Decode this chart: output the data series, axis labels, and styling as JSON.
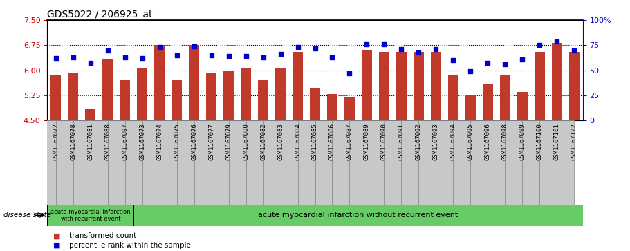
{
  "title": "GDS5022 / 206925_at",
  "samples": [
    "GSM1167072",
    "GSM1167078",
    "GSM1167081",
    "GSM1167088",
    "GSM1167097",
    "GSM1167073",
    "GSM1167074",
    "GSM1167075",
    "GSM1167076",
    "GSM1167077",
    "GSM1167079",
    "GSM1167080",
    "GSM1167082",
    "GSM1167083",
    "GSM1167084",
    "GSM1167085",
    "GSM1167086",
    "GSM1167087",
    "GSM1167089",
    "GSM1167090",
    "GSM1167091",
    "GSM1167092",
    "GSM1167093",
    "GSM1167094",
    "GSM1167095",
    "GSM1167096",
    "GSM1167098",
    "GSM1167099",
    "GSM1167100",
    "GSM1167101",
    "GSM1167122"
  ],
  "bar_values": [
    5.85,
    5.9,
    4.85,
    6.35,
    5.72,
    6.05,
    6.75,
    5.72,
    6.75,
    5.9,
    5.97,
    6.05,
    5.72,
    6.05,
    6.55,
    5.48,
    5.3,
    5.2,
    6.6,
    6.55,
    6.55,
    6.55,
    6.55,
    5.85,
    5.25,
    5.6,
    5.85,
    5.35,
    6.55,
    6.82,
    6.55
  ],
  "dot_values": [
    62,
    63,
    57,
    70,
    63,
    62,
    73,
    65,
    74,
    65,
    64,
    64,
    63,
    66,
    73,
    72,
    63,
    47,
    76,
    76,
    71,
    68,
    71,
    60,
    49,
    57,
    56,
    61,
    75,
    79,
    70
  ],
  "ylim_left": [
    4.5,
    7.5
  ],
  "ylim_right": [
    0,
    100
  ],
  "yticks_left": [
    4.5,
    5.25,
    6.0,
    6.75,
    7.5
  ],
  "yticks_right": [
    0,
    25,
    50,
    75,
    100
  ],
  "hlines": [
    5.25,
    6.0,
    6.75
  ],
  "bar_color": "#C0392B",
  "dot_color": "#0000CC",
  "bar_bottom": 4.5,
  "group1_count": 5,
  "group1_label": "acute myocardial infarction\nwith recurrent event",
  "group2_label": "acute myocardial infarction without recurrent event",
  "group_color": "#66CC66",
  "disease_state_label": "disease state",
  "legend_bar_label": "transformed count",
  "legend_dot_label": "percentile rank within the sample",
  "title_fontsize": 10,
  "tick_fontsize": 6.5,
  "label_fontsize": 8,
  "axis_color_left": "#CC0000",
  "axis_color_right": "#0000CC",
  "xtick_bg": "#C8C8C8",
  "xtick_border": "#888888"
}
